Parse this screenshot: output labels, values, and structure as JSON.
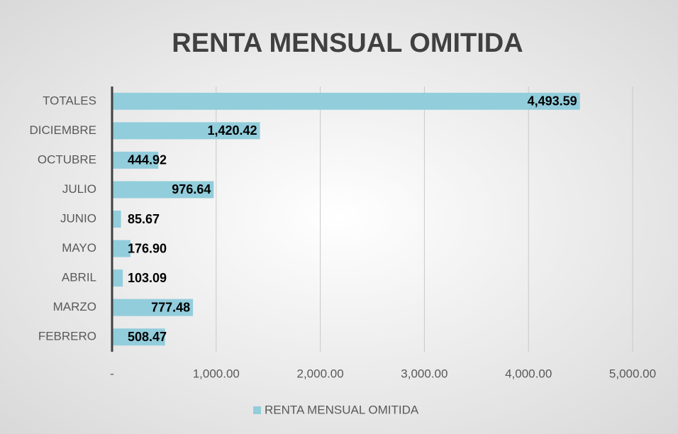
{
  "chart_data": {
    "type": "bar",
    "orientation": "horizontal",
    "title": "RENTA MENSUAL OMITIDA",
    "categories": [
      "TOTALES",
      "DICIEMBRE",
      "OCTUBRE",
      "JULIO",
      "JUNIO",
      "MAYO",
      "ABRIL",
      "MARZO",
      "FEBRERO"
    ],
    "series": [
      {
        "name": "RENTA MENSUAL OMITIDA",
        "color": "#92cddc",
        "values": [
          4493.59,
          1420.42,
          444.92,
          976.64,
          85.67,
          176.9,
          103.09,
          777.48,
          508.47
        ],
        "value_labels": [
          "4,493.59",
          "1,420.42",
          "444.92",
          "976.64",
          "85.67",
          "176.90",
          "103.09",
          "777.48",
          "508.47"
        ]
      }
    ],
    "xlim": [
      0,
      5000
    ],
    "xticks": [
      {
        "value": 0,
        "label": "-"
      },
      {
        "value": 1000,
        "label": "1,000.00"
      },
      {
        "value": 2000,
        "label": "2,000.00"
      },
      {
        "value": 3000,
        "label": "3,000.00"
      },
      {
        "value": 4000,
        "label": "4,000.00"
      },
      {
        "value": 5000,
        "label": "5,000.00"
      }
    ],
    "grid": true,
    "legend": "bottom"
  }
}
